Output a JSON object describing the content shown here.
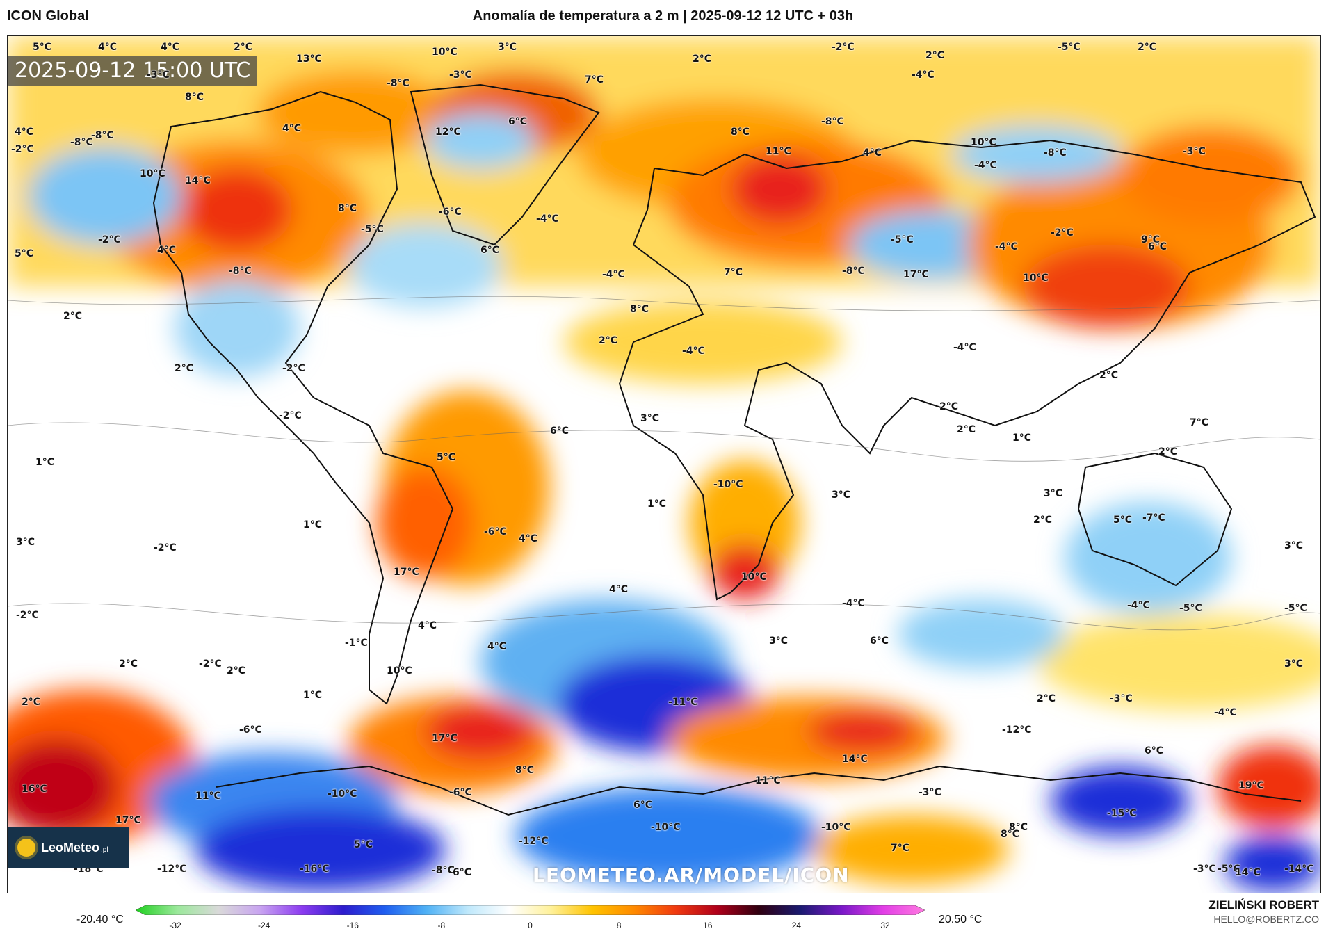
{
  "header": {
    "model": "ICON Global",
    "title": "Anomalía de temperatura a 2 m | 2025-09-12 12 UTC + 03h"
  },
  "map": {
    "valid_time": "2025-09-12 15:00 UTC",
    "watermark": "LEOMETEO.AR/MODEL/ICON",
    "logo": {
      "name": "LeoMeteo",
      "tld": ".pl"
    },
    "colors": {
      "strong_cold": "#1b2fd8",
      "cold": "#2c7ff0",
      "cool": "#8fd0f7",
      "neutral": "#ffffff",
      "warm_light": "#ffe36b",
      "warm": "#ffb400",
      "hot": "#ff6a00",
      "very_hot": "#e0141c",
      "extreme": "#a80012"
    },
    "labels": [
      {
        "text": "5°C"
      },
      {
        "text": "4°C"
      },
      {
        "text": "4°C"
      },
      {
        "text": "2°C"
      },
      {
        "text": "13°C"
      },
      {
        "text": "10°C"
      },
      {
        "text": "3°C"
      },
      {
        "text": "2°C"
      },
      {
        "text": "-2°C"
      },
      {
        "text": "2°C"
      },
      {
        "text": "-5°C"
      },
      {
        "text": "2°C"
      },
      {
        "text": "-3°C"
      },
      {
        "text": "-8°C"
      },
      {
        "text": "-3°C"
      },
      {
        "text": "7°C"
      },
      {
        "text": "-4°C"
      },
      {
        "text": "8°C"
      },
      {
        "text": "4°C"
      },
      {
        "text": "6°C"
      },
      {
        "text": "-8°C"
      },
      {
        "text": "12°C"
      },
      {
        "text": "8°C"
      },
      {
        "text": "-8°C"
      },
      {
        "text": "4°C"
      },
      {
        "text": "-8°C"
      },
      {
        "text": "-2°C"
      },
      {
        "text": "10°C"
      },
      {
        "text": "14°C"
      },
      {
        "text": "11°C"
      },
      {
        "text": "10°C"
      },
      {
        "text": "4°C"
      },
      {
        "text": "-4°C"
      },
      {
        "text": "-8°C"
      },
      {
        "text": "-3°C"
      },
      {
        "text": "-6°C"
      },
      {
        "text": "-5°C"
      },
      {
        "text": "-4°C"
      },
      {
        "text": "-5°C"
      },
      {
        "text": "-4°C"
      },
      {
        "text": "8°C"
      },
      {
        "text": "-2°C"
      },
      {
        "text": "5°C"
      },
      {
        "text": "4°C"
      },
      {
        "text": "6°C"
      },
      {
        "text": "9°C"
      },
      {
        "text": "-2°C"
      },
      {
        "text": "6°C"
      },
      {
        "text": "-8°C"
      },
      {
        "text": "-4°C"
      },
      {
        "text": "7°C"
      },
      {
        "text": "-8°C"
      },
      {
        "text": "17°C"
      },
      {
        "text": "10°C"
      },
      {
        "text": "8°C"
      },
      {
        "text": "2°C"
      },
      {
        "text": "-4°C"
      },
      {
        "text": "2°C"
      },
      {
        "text": "2°C"
      },
      {
        "text": "2°C"
      },
      {
        "text": "3°C"
      },
      {
        "text": "-4°C"
      },
      {
        "text": "-2°C"
      },
      {
        "text": "2°C"
      },
      {
        "text": "2°C"
      },
      {
        "text": "1°C"
      },
      {
        "text": "-2°C"
      },
      {
        "text": "6°C"
      },
      {
        "text": "5°C"
      },
      {
        "text": "1°C"
      },
      {
        "text": "2°C"
      },
      {
        "text": "7°C"
      },
      {
        "text": "3°C"
      },
      {
        "text": "1°C"
      },
      {
        "text": "-10°C"
      },
      {
        "text": "3°C"
      },
      {
        "text": "2°C"
      },
      {
        "text": "5°C"
      },
      {
        "text": "-7°C"
      },
      {
        "text": "1°C"
      },
      {
        "text": "-6°C"
      },
      {
        "text": "3°C"
      },
      {
        "text": "4°C"
      },
      {
        "text": "-2°C"
      },
      {
        "text": "17°C"
      },
      {
        "text": "10°C"
      },
      {
        "text": "3°C"
      },
      {
        "text": "-2°C"
      },
      {
        "text": "4°C"
      },
      {
        "text": "-4°C"
      },
      {
        "text": "4°C"
      },
      {
        "text": "-4°C"
      },
      {
        "text": "-5°C"
      },
      {
        "text": "-1°C"
      },
      {
        "text": "-5°C"
      },
      {
        "text": "6°C"
      },
      {
        "text": "4°C"
      },
      {
        "text": "3°C"
      },
      {
        "text": "10°C"
      },
      {
        "text": "3°C"
      },
      {
        "text": "2°C"
      },
      {
        "text": "-2°C"
      },
      {
        "text": "2°C"
      },
      {
        "text": "1°C"
      },
      {
        "text": "-11°C"
      },
      {
        "text": "2°C"
      },
      {
        "text": "-3°C"
      },
      {
        "text": "-4°C"
      },
      {
        "text": "2°C"
      },
      {
        "text": "-6°C"
      },
      {
        "text": "17°C"
      },
      {
        "text": "8°C"
      },
      {
        "text": "14°C"
      },
      {
        "text": "-12°C"
      },
      {
        "text": "6°C"
      },
      {
        "text": "16°C"
      },
      {
        "text": "11°C"
      },
      {
        "text": "-10°C"
      },
      {
        "text": "-6°C"
      },
      {
        "text": "11°C"
      },
      {
        "text": "-3°C"
      },
      {
        "text": "19°C"
      },
      {
        "text": "17°C"
      },
      {
        "text": "6°C"
      },
      {
        "text": "-10°C"
      },
      {
        "text": "-15°C"
      },
      {
        "text": "5°C"
      },
      {
        "text": "-12°C"
      },
      {
        "text": "-10°C"
      },
      {
        "text": "8°C"
      },
      {
        "text": "7°C"
      },
      {
        "text": "8°C"
      },
      {
        "text": "-18°C"
      },
      {
        "text": "-12°C"
      },
      {
        "text": "-16°C"
      },
      {
        "text": "-8°C"
      },
      {
        "text": "6°C"
      },
      {
        "text": "-3°C"
      },
      {
        "text": "-5°C"
      },
      {
        "text": "14°C"
      },
      {
        "text": "-14°C"
      }
    ]
  },
  "legend": {
    "min_label": "-20.40 °C",
    "max_label": "20.50 °C",
    "ticks": [
      "-32",
      "-24",
      "-16",
      "-8",
      "0",
      "8",
      "16",
      "24",
      "32"
    ],
    "stops": [
      "#1fd01f",
      "#9be89b",
      "#d9d9d9",
      "#c8a4f0",
      "#8c3cf0",
      "#2d1ccd",
      "#1f5ef0",
      "#4fb1f5",
      "#bfe8fb",
      "#ffffff",
      "#fff19a",
      "#ffc300",
      "#ff8a00",
      "#f03a10",
      "#b0001a",
      "#300010",
      "#1a1a70",
      "#7a18c8",
      "#e23ee6",
      "#ff7ae0"
    ]
  },
  "credit": {
    "author": "ZIELIŃSKI ROBERT",
    "email": "HELLO@ROBERTZ.CO"
  }
}
